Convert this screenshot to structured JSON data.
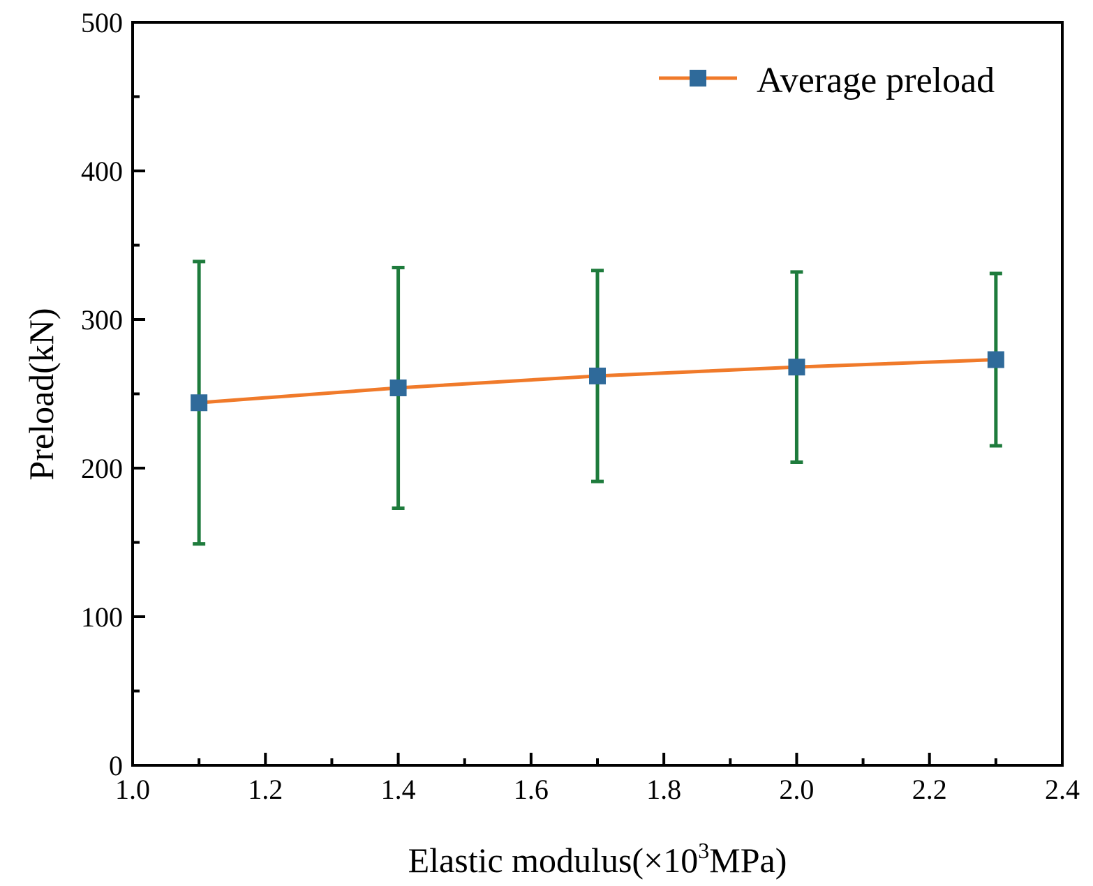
{
  "chart_data": {
    "type": "line",
    "title": "",
    "xlabel_main": "Elastic modulus(×10",
    "xlabel_sup": "3",
    "xlabel_unit": "MPa)",
    "ylabel": "Preload(kN)",
    "xlim": [
      1.0,
      2.4
    ],
    "ylim": [
      0,
      500
    ],
    "x_ticks": [
      1.0,
      1.2,
      1.4,
      1.6,
      1.8,
      2.0,
      2.2,
      2.4
    ],
    "x_tick_labels": [
      "1.0",
      "1.2",
      "1.4",
      "1.6",
      "1.8",
      "2.0",
      "2.2",
      "2.4"
    ],
    "y_ticks": [
      0,
      100,
      200,
      300,
      400,
      500
    ],
    "y_tick_labels": [
      "0",
      "100",
      "200",
      "300",
      "400",
      "500"
    ],
    "grid": false,
    "legend_position": "top-right",
    "series": [
      {
        "name": "Average preload",
        "x": [
          1.1,
          1.4,
          1.7,
          2.0,
          2.3
        ],
        "y": [
          244,
          254,
          262,
          268,
          273
        ],
        "error_upper": [
          339,
          335,
          333,
          332,
          331
        ],
        "error_lower": [
          149,
          173,
          191,
          204,
          215
        ]
      }
    ],
    "colors": {
      "line": "#f07a2a",
      "marker": "#2f6a9a",
      "error_bar": "#1e7b3c",
      "axis": "#000000"
    }
  }
}
